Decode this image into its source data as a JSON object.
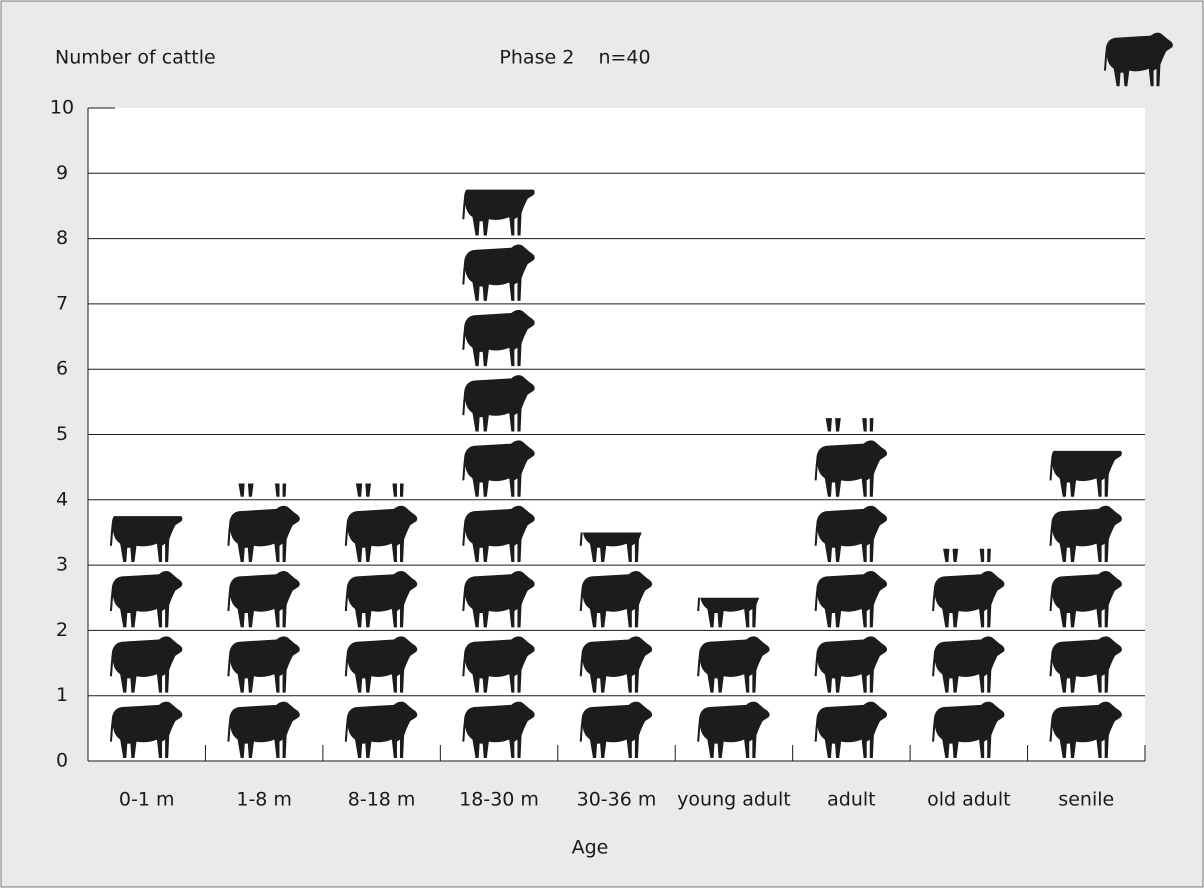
{
  "chart_data": {
    "type": "pictograph",
    "title": "Phase 2    n=40",
    "y_label": "Number of cattle",
    "x_label": "Age",
    "categories": [
      "0-1 m",
      "1-8 m",
      "8-18 m",
      "18-30 m",
      "30-36 m",
      "young adult",
      "adult",
      "old adult",
      "senile"
    ],
    "values": [
      3.75,
      4.25,
      4.25,
      8.75,
      3.5,
      2.5,
      5.25,
      3.25,
      4.75
    ],
    "color": "#1c1c1c",
    "ylim": [
      0,
      10
    ],
    "yticks": [
      0,
      1,
      2,
      3,
      4,
      5,
      6,
      7,
      8,
      9,
      10
    ],
    "grid": true
  }
}
